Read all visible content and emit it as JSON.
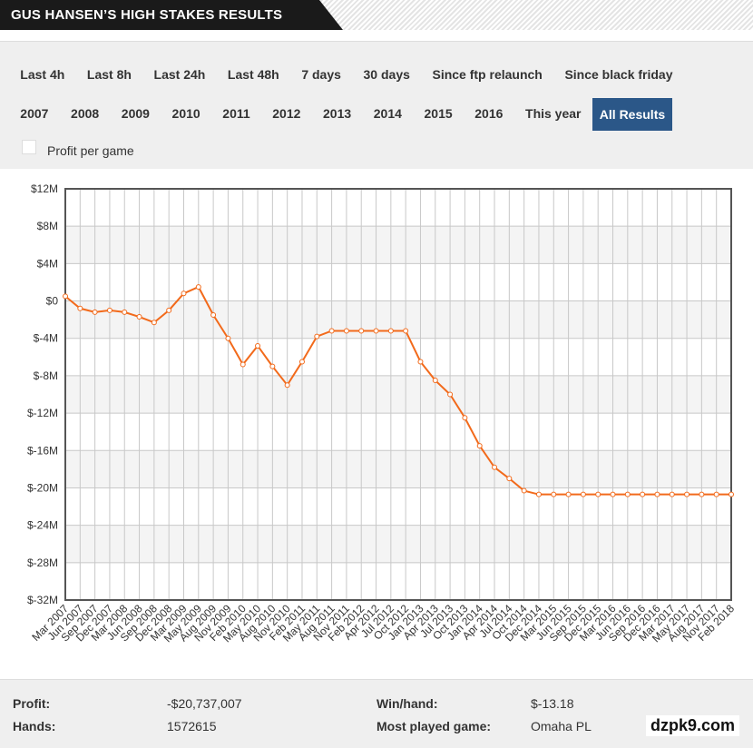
{
  "header": {
    "title": "GUS HANSEN’S HIGH STAKES RESULTS"
  },
  "tabs": {
    "rows": [
      [
        "Last 4h",
        "Last 8h",
        "Last 24h",
        "Last 48h",
        "7 days",
        "30 days",
        "Since ftp relaunch",
        "Since black friday"
      ],
      [
        "2007",
        "2008",
        "2009",
        "2010",
        "2011",
        "2012",
        "2013",
        "2014",
        "2015",
        "2016",
        "This year",
        "All Results"
      ]
    ],
    "active": "All Results"
  },
  "checkbox": {
    "label": "Profit per game"
  },
  "chart_data": {
    "type": "line",
    "categories": [
      "Mar 2007",
      "Jun 2007",
      "Sep 2007",
      "Dec 2007",
      "Mar 2008",
      "Jun 2008",
      "Sep 2008",
      "Dec 2008",
      "Mar 2009",
      "May 2009",
      "Aug 2009",
      "Nov 2009",
      "Feb 2010",
      "May 2010",
      "Aug 2010",
      "Nov 2010",
      "Feb 2011",
      "May 2011",
      "Aug 2011",
      "Nov 2011",
      "Feb 2012",
      "Apr 2012",
      "Jul 2012",
      "Oct 2012",
      "Jan 2013",
      "Apr 2013",
      "Jul 2013",
      "Oct 2013",
      "Jan 2014",
      "Apr 2014",
      "Jul 2014",
      "Oct 2014",
      "Dec 2014",
      "Mar 2015",
      "Jun 2015",
      "Sep 2015",
      "Dec 2015",
      "Mar 2016",
      "Jun 2016",
      "Sep 2016",
      "Dec 2016",
      "Mar 2017",
      "May 2017",
      "Aug 2017",
      "Nov 2017",
      "Feb 2018"
    ],
    "series": [
      {
        "color": "#f26a1b",
        "values": [
          0.5,
          -0.8,
          -1.2,
          -1.0,
          -1.2,
          -1.7,
          -2.3,
          -1.0,
          0.8,
          1.5,
          -1.5,
          -4.0,
          -6.8,
          -4.8,
          -7.0,
          -9.0,
          -6.5,
          -3.8,
          -3.2,
          -3.2,
          -3.2,
          -3.2,
          -3.2,
          -3.2,
          -6.5,
          -8.5,
          -10.0,
          -12.5,
          -15.5,
          -17.8,
          -19.0,
          -20.3,
          -20.7,
          -20.7,
          -20.7,
          -20.7,
          -20.7,
          -20.7,
          -20.7,
          -20.7,
          -20.7,
          -20.7,
          -20.7,
          -20.7,
          -20.7,
          -20.7
        ]
      }
    ],
    "ylim": [
      -32,
      12
    ],
    "yticks": [
      {
        "value": 12,
        "label": "$12M"
      },
      {
        "value": 8,
        "label": "$8M"
      },
      {
        "value": 4,
        "label": "$4M"
      },
      {
        "value": 0,
        "label": "$0"
      },
      {
        "value": -4,
        "label": "$-4M"
      },
      {
        "value": -8,
        "label": "$-8M"
      },
      {
        "value": -12,
        "label": "$-12M"
      },
      {
        "value": -16,
        "label": "$-16M"
      },
      {
        "value": -20,
        "label": "$-20M"
      },
      {
        "value": -24,
        "label": "$-24M"
      },
      {
        "value": -28,
        "label": "$-28M"
      },
      {
        "value": -32,
        "label": "$-32M"
      }
    ],
    "grid": true
  },
  "stats": [
    {
      "label": "Profit:",
      "value": "-$20,737,007"
    },
    {
      "label": "Hands:",
      "value": "1572615"
    },
    {
      "label": "Win/hand:",
      "value": "$-13.18"
    },
    {
      "label": "Most played game:",
      "value": "Omaha PL"
    }
  ],
  "watermark": "dzpk9.com"
}
